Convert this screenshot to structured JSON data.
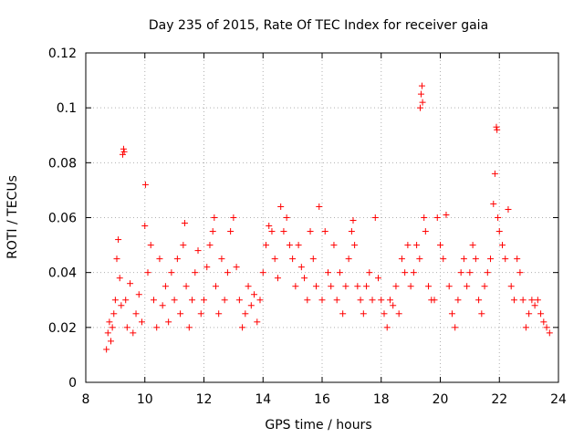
{
  "chart_data": {
    "type": "scatter",
    "title": "Day 235 of 2015, Rate Of TEC Index for receiver gaia",
    "xlabel": "GPS time / hours",
    "ylabel": "ROTI / TECUs",
    "xlim": [
      8,
      24
    ],
    "ylim": [
      0,
      0.12
    ],
    "xticks": [
      8,
      10,
      12,
      14,
      16,
      18,
      20,
      22,
      24
    ],
    "xtick_labels": [
      "8",
      "10",
      "12",
      "14",
      "16",
      "18",
      "20",
      "22",
      "24"
    ],
    "yticks": [
      0,
      0.02,
      0.04,
      0.06,
      0.08,
      0.1,
      0.12
    ],
    "ytick_labels": [
      "0",
      "0.02",
      "0.04",
      "0.06",
      "0.08",
      "0.1",
      "0.12"
    ],
    "grid": true,
    "marker": "+",
    "marker_color": "#ff0000",
    "series": [
      {
        "name": "ROTI",
        "points": [
          [
            8.7,
            0.012
          ],
          [
            8.75,
            0.018
          ],
          [
            8.8,
            0.022
          ],
          [
            8.85,
            0.015
          ],
          [
            8.9,
            0.02
          ],
          [
            8.95,
            0.025
          ],
          [
            9.0,
            0.03
          ],
          [
            9.05,
            0.045
          ],
          [
            9.1,
            0.052
          ],
          [
            9.15,
            0.038
          ],
          [
            9.2,
            0.028
          ],
          [
            9.25,
            0.083
          ],
          [
            9.28,
            0.085
          ],
          [
            9.3,
            0.084
          ],
          [
            9.35,
            0.03
          ],
          [
            9.4,
            0.02
          ],
          [
            9.5,
            0.036
          ],
          [
            9.6,
            0.018
          ],
          [
            9.7,
            0.025
          ],
          [
            9.8,
            0.032
          ],
          [
            9.9,
            0.022
          ],
          [
            10.0,
            0.057
          ],
          [
            10.02,
            0.072
          ],
          [
            10.1,
            0.04
          ],
          [
            10.2,
            0.05
          ],
          [
            10.3,
            0.03
          ],
          [
            10.4,
            0.02
          ],
          [
            10.5,
            0.045
          ],
          [
            10.6,
            0.028
          ],
          [
            10.7,
            0.035
          ],
          [
            10.8,
            0.022
          ],
          [
            10.9,
            0.04
          ],
          [
            11.0,
            0.03
          ],
          [
            11.1,
            0.045
          ],
          [
            11.2,
            0.025
          ],
          [
            11.3,
            0.05
          ],
          [
            11.35,
            0.058
          ],
          [
            11.4,
            0.035
          ],
          [
            11.5,
            0.02
          ],
          [
            11.6,
            0.03
          ],
          [
            11.7,
            0.04
          ],
          [
            11.8,
            0.048
          ],
          [
            11.9,
            0.025
          ],
          [
            12.0,
            0.03
          ],
          [
            12.1,
            0.042
          ],
          [
            12.2,
            0.05
          ],
          [
            12.3,
            0.055
          ],
          [
            12.35,
            0.06
          ],
          [
            12.4,
            0.035
          ],
          [
            12.5,
            0.025
          ],
          [
            12.6,
            0.045
          ],
          [
            12.7,
            0.03
          ],
          [
            12.8,
            0.04
          ],
          [
            12.9,
            0.055
          ],
          [
            13.0,
            0.06
          ],
          [
            13.1,
            0.042
          ],
          [
            13.2,
            0.03
          ],
          [
            13.3,
            0.02
          ],
          [
            13.4,
            0.025
          ],
          [
            13.5,
            0.035
          ],
          [
            13.6,
            0.028
          ],
          [
            13.7,
            0.032
          ],
          [
            13.8,
            0.022
          ],
          [
            13.9,
            0.03
          ],
          [
            14.0,
            0.04
          ],
          [
            14.1,
            0.05
          ],
          [
            14.2,
            0.057
          ],
          [
            14.3,
            0.055
          ],
          [
            14.4,
            0.045
          ],
          [
            14.5,
            0.038
          ],
          [
            14.6,
            0.064
          ],
          [
            14.7,
            0.055
          ],
          [
            14.8,
            0.06
          ],
          [
            14.9,
            0.05
          ],
          [
            15.0,
            0.045
          ],
          [
            15.1,
            0.035
          ],
          [
            15.2,
            0.05
          ],
          [
            15.3,
            0.042
          ],
          [
            15.4,
            0.038
          ],
          [
            15.5,
            0.03
          ],
          [
            15.6,
            0.055
          ],
          [
            15.7,
            0.045
          ],
          [
            15.8,
            0.035
          ],
          [
            15.9,
            0.064
          ],
          [
            16.0,
            0.03
          ],
          [
            16.1,
            0.055
          ],
          [
            16.2,
            0.04
          ],
          [
            16.3,
            0.035
          ],
          [
            16.4,
            0.05
          ],
          [
            16.5,
            0.03
          ],
          [
            16.6,
            0.04
          ],
          [
            16.7,
            0.025
          ],
          [
            16.8,
            0.035
          ],
          [
            16.9,
            0.045
          ],
          [
            17.0,
            0.055
          ],
          [
            17.05,
            0.059
          ],
          [
            17.1,
            0.05
          ],
          [
            17.2,
            0.035
          ],
          [
            17.3,
            0.03
          ],
          [
            17.4,
            0.025
          ],
          [
            17.5,
            0.035
          ],
          [
            17.6,
            0.04
          ],
          [
            17.7,
            0.03
          ],
          [
            17.8,
            0.06
          ],
          [
            17.9,
            0.038
          ],
          [
            18.0,
            0.03
          ],
          [
            18.1,
            0.025
          ],
          [
            18.2,
            0.02
          ],
          [
            18.3,
            0.03
          ],
          [
            18.4,
            0.028
          ],
          [
            18.5,
            0.035
          ],
          [
            18.6,
            0.025
          ],
          [
            18.7,
            0.045
          ],
          [
            18.8,
            0.04
          ],
          [
            18.9,
            0.05
          ],
          [
            19.0,
            0.035
          ],
          [
            19.1,
            0.04
          ],
          [
            19.2,
            0.05
          ],
          [
            19.3,
            0.045
          ],
          [
            19.32,
            0.1
          ],
          [
            19.35,
            0.105
          ],
          [
            19.38,
            0.108
          ],
          [
            19.4,
            0.102
          ],
          [
            19.45,
            0.06
          ],
          [
            19.5,
            0.055
          ],
          [
            19.6,
            0.035
          ],
          [
            19.7,
            0.03
          ],
          [
            19.8,
            0.03
          ],
          [
            19.9,
            0.06
          ],
          [
            20.0,
            0.05
          ],
          [
            20.1,
            0.045
          ],
          [
            20.2,
            0.061
          ],
          [
            20.3,
            0.035
          ],
          [
            20.4,
            0.025
          ],
          [
            20.5,
            0.02
          ],
          [
            20.6,
            0.03
          ],
          [
            20.7,
            0.04
          ],
          [
            20.8,
            0.045
          ],
          [
            20.9,
            0.035
          ],
          [
            21.0,
            0.04
          ],
          [
            21.1,
            0.05
          ],
          [
            21.2,
            0.045
          ],
          [
            21.3,
            0.03
          ],
          [
            21.4,
            0.025
          ],
          [
            21.5,
            0.035
          ],
          [
            21.6,
            0.04
          ],
          [
            21.7,
            0.045
          ],
          [
            21.8,
            0.065
          ],
          [
            21.85,
            0.076
          ],
          [
            21.9,
            0.093
          ],
          [
            21.92,
            0.092
          ],
          [
            21.95,
            0.06
          ],
          [
            22.0,
            0.055
          ],
          [
            22.1,
            0.05
          ],
          [
            22.2,
            0.045
          ],
          [
            22.3,
            0.063
          ],
          [
            22.4,
            0.035
          ],
          [
            22.5,
            0.03
          ],
          [
            22.6,
            0.045
          ],
          [
            22.7,
            0.04
          ],
          [
            22.8,
            0.03
          ],
          [
            22.9,
            0.02
          ],
          [
            23.0,
            0.025
          ],
          [
            23.1,
            0.03
          ],
          [
            23.2,
            0.028
          ],
          [
            23.3,
            0.03
          ],
          [
            23.4,
            0.025
          ],
          [
            23.5,
            0.022
          ],
          [
            23.6,
            0.02
          ],
          [
            23.7,
            0.018
          ]
        ]
      }
    ]
  }
}
